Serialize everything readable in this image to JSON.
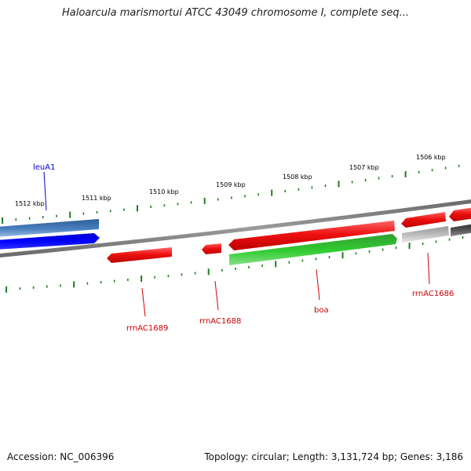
{
  "title": "Haloarcula marismortui ATCC 43049 chromosome I, complete seq...",
  "scale_labels": [
    "1512 kbp",
    "1511 kbp",
    "1510 kbp",
    "1509 kbp",
    "1508 kbp",
    "1507 kbp",
    "1506 kbp"
  ],
  "gene_labels": {
    "leuA1": "leuA1",
    "rrnAC1689": "rrnAC1689",
    "rrnAC1688": "rrnAC1688",
    "boa": "boa",
    "rrnAC1686": "rrnAC1686"
  },
  "colors": {
    "backbone": "#808080",
    "tick": "#1a7f1a",
    "leuA1": "#4a7fbf",
    "blue_feature": "#0000ee",
    "red_feature": "#ee1111",
    "green_feature": "#33bb33",
    "grey_feature": "#bbbbbb",
    "dark_grey_feature": "#555555",
    "leuA1_label": "#0000cc",
    "red_label": "#cc0000"
  },
  "footer": {
    "accession": "Accession: NC_006396",
    "summary": "Topology: circular; Length: 3,131,724 bp; Genes: 3,186"
  }
}
